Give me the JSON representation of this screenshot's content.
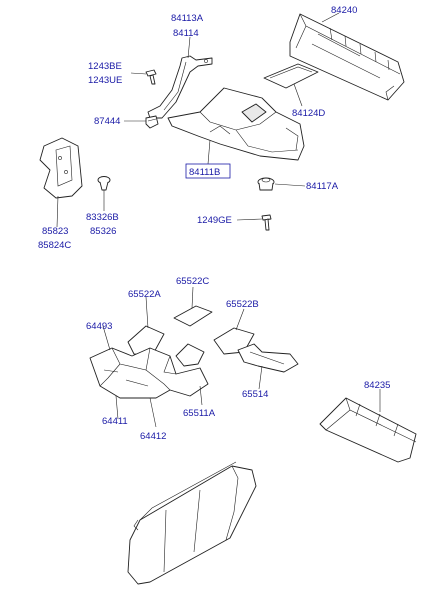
{
  "labels": {
    "p84113a": "84113A",
    "p84114": "84114",
    "p84240": "84240",
    "p1243be": "1243BE",
    "p1243ue": "1243UE",
    "p84124d": "84124D",
    "p87444": "87444",
    "p84111b": "84111B",
    "p84117a": "84117A",
    "p83326b": "83326B",
    "p85326": "85326",
    "p85823": "85823",
    "p85824c": "85824C",
    "p1249ge": "1249GE",
    "p65522c": "65522C",
    "p65522a": "65522A",
    "p65522b": "65522B",
    "p64493": "64493",
    "p65514": "65514",
    "p64411": "64411",
    "p64412": "64412",
    "p65511a": "65511A",
    "p84235": "84235"
  },
  "colors": {
    "label_text": "#1a1aa6",
    "line_art": "#222222",
    "background": "#ffffff"
  }
}
